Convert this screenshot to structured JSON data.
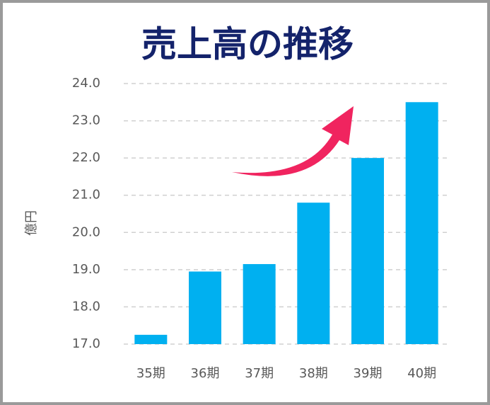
{
  "chart_data": {
    "type": "bar",
    "title": "売上高の推移",
    "y_label": "億円",
    "categories": [
      "35期",
      "36期",
      "37期",
      "38期",
      "39期",
      "40期"
    ],
    "values": [
      17.25,
      18.95,
      19.15,
      20.8,
      22.0,
      23.5
    ],
    "color": "#00b0f0",
    "ylim": [
      17,
      24
    ],
    "yticks": [
      {
        "value": 17,
        "label": "17.0"
      },
      {
        "value": 18,
        "label": "18.0"
      },
      {
        "value": 19,
        "label": "19.0"
      },
      {
        "value": 20,
        "label": "20.0"
      },
      {
        "value": 21,
        "label": "21.0"
      },
      {
        "value": 22,
        "label": "22.0"
      },
      {
        "value": 23,
        "label": "23.0"
      },
      {
        "value": 24,
        "label": "24.0"
      }
    ],
    "grid": true
  }
}
